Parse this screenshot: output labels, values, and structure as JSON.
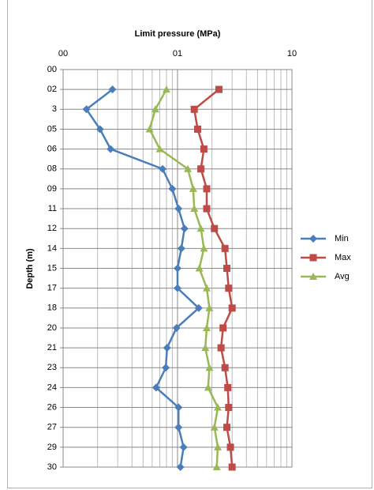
{
  "chart_data": {
    "type": "line",
    "title": "Limit pressure (MPa)",
    "y_label": "Depth (m)",
    "xscale": "log",
    "xlim": [
      0.1,
      10
    ],
    "xticks": [
      {
        "value": 0.1,
        "label": "00"
      },
      {
        "value": 1,
        "label": "01"
      },
      10
    ],
    "ylim": [
      0,
      30
    ],
    "yticks": [
      {
        "value": 0,
        "label": "00"
      },
      {
        "value": 1.5,
        "label": "02"
      },
      3,
      {
        "value": 4.5,
        "label": "05"
      },
      {
        "value": 6,
        "label": "06"
      },
      {
        "value": 7.5,
        "label": "08"
      },
      {
        "value": 9,
        "label": "09"
      },
      {
        "value": 10.5,
        "label": "11"
      },
      12,
      {
        "value": 13.5,
        "label": "14"
      },
      15,
      {
        "value": 16.5,
        "label": "17"
      },
      18,
      {
        "value": 19.5,
        "label": "20"
      },
      21,
      {
        "value": 22.5,
        "label": "23"
      },
      24,
      {
        "value": 25.5,
        "label": "26"
      },
      27,
      {
        "value": 28.5,
        "label": "29"
      },
      30
    ],
    "grid": true,
    "legend": "right",
    "depths": [
      1.5,
      3,
      4.5,
      6,
      7.5,
      9,
      10.5,
      12,
      13.5,
      15,
      16.5,
      18,
      19.5,
      21,
      22.5,
      24,
      25.5,
      27,
      28.5,
      30
    ],
    "series": [
      {
        "name": "Min",
        "color": "#4a7ebb",
        "marker": "diamond",
        "values": [
          0.27,
          0.16,
          0.21,
          0.26,
          0.74,
          0.9,
          1.02,
          1.15,
          1.08,
          1.0,
          1.0,
          1.53,
          0.98,
          0.81,
          0.79,
          0.65,
          1.02,
          1.02,
          1.13,
          1.06
        ]
      },
      {
        "name": "Max",
        "color": "#be4b48",
        "marker": "square",
        "values": [
          2.3,
          1.4,
          1.5,
          1.7,
          1.6,
          1.8,
          1.8,
          2.1,
          2.6,
          2.7,
          2.8,
          3.0,
          2.5,
          2.4,
          2.6,
          2.75,
          2.8,
          2.7,
          2.9,
          3.0
        ]
      },
      {
        "name": "Avg",
        "color": "#98b954",
        "marker": "triangle",
        "values": [
          0.8,
          0.64,
          0.57,
          0.7,
          1.23,
          1.37,
          1.4,
          1.6,
          1.7,
          1.55,
          1.8,
          1.9,
          1.8,
          1.75,
          1.9,
          1.85,
          2.25,
          2.1,
          2.25,
          2.2
        ]
      }
    ]
  }
}
